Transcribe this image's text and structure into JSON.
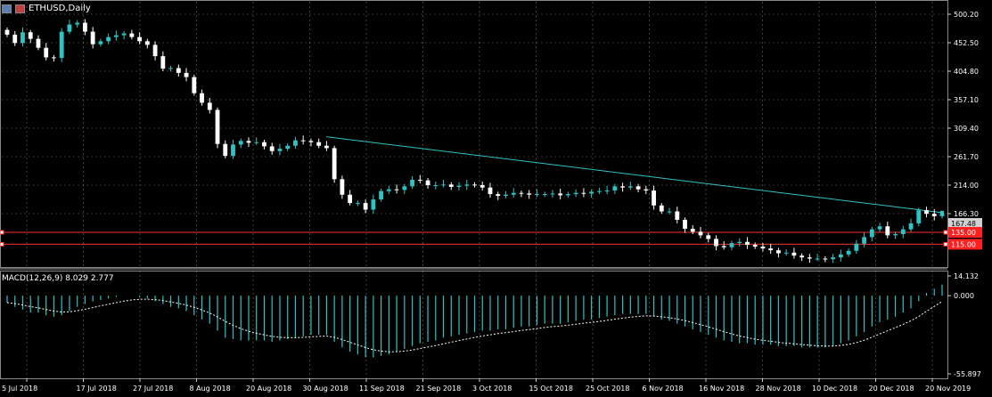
{
  "header": {
    "symbol_title": "ETHUSD,Daily",
    "icons": [
      "chart-window-icon",
      "flag-icon"
    ]
  },
  "macd": {
    "label": "MACD(12,26,9) 8.029 2.777"
  },
  "colors": {
    "background": "#000000",
    "grid": "#c0c0c0",
    "bull_candle": "#2ec4c4",
    "bear_candle": "#ffffff",
    "trendline": "#2ec4c4",
    "support_line": "#ff3030",
    "macd_hist": "#2ec4c4",
    "macd_signal": "#ffffff"
  },
  "chart_data": [
    {
      "type": "candlestick",
      "title": "ETHUSD,Daily",
      "y_ticks": [
        "500.20",
        "452.50",
        "404.80",
        "357.10",
        "309.40",
        "261.70",
        "214.00",
        "166.30"
      ],
      "ylim": [
        115.0,
        500.2
      ],
      "x_ticks": [
        "5 Jul 2018",
        "17 Jul 2018",
        "27 Jul 2018",
        "8 Aug 2018",
        "20 Aug 2018",
        "30 Aug 2018",
        "11 Sep 2018",
        "21 Sep 2018",
        "3 Oct 2018",
        "15 Oct 2018",
        "25 Oct 2018",
        "6 Nov 2018",
        "16 Nov 2018",
        "28 Nov 2018",
        "10 Dec 2018",
        "20 Dec 2018",
        "20 Nov 2019"
      ],
      "price_tags": [
        {
          "label": "167.48",
          "role": "current_price"
        },
        {
          "label": "135.00",
          "role": "horizontal_level"
        },
        {
          "label": "115.00",
          "role": "horizontal_level"
        }
      ],
      "horizontal_levels": [
        135.0,
        115.0
      ],
      "trendline": {
        "from": {
          "date": "30 Aug 2018",
          "price": 295
        },
        "to": {
          "date": "20 Nov 2019",
          "price": 168
        }
      },
      "closes": [
        466,
        452,
        470,
        459,
        444,
        428,
        427,
        471,
        483,
        486,
        471,
        450,
        455,
        462,
        465,
        468,
        462,
        455,
        449,
        430,
        409,
        410,
        402,
        395,
        368,
        352,
        340,
        283,
        263,
        282,
        288,
        285,
        286,
        279,
        271,
        275,
        280,
        289,
        288,
        286,
        280,
        276,
        224,
        198,
        184,
        184,
        173,
        190,
        204,
        207,
        206,
        212,
        223,
        222,
        214,
        214,
        215,
        211,
        213,
        215,
        214,
        210,
        199,
        196,
        198,
        201,
        200,
        198,
        199,
        199,
        200,
        197,
        199,
        201,
        200,
        203,
        204,
        205,
        212,
        210,
        212,
        207,
        205,
        180,
        170,
        170,
        156,
        141,
        136,
        130,
        124,
        112,
        110,
        117,
        119,
        114,
        111,
        108,
        105,
        100,
        101,
        96,
        93,
        91,
        91,
        90,
        93,
        98,
        104,
        116,
        127,
        140,
        145,
        130,
        132,
        140,
        150,
        172,
        166,
        162,
        167
      ]
    },
    {
      "type": "macd",
      "title": "MACD(12,26,9) 8.029 2.777",
      "y_ticks": [
        "14.132",
        "0.000",
        "-55.897"
      ],
      "ylim": [
        -55.897,
        14.132
      ],
      "histogram": [
        -5,
        -8,
        -10,
        -12,
        -12,
        -14,
        -15,
        -14,
        -11,
        -8,
        -6,
        -4,
        -3,
        -2,
        -1,
        0,
        0,
        -1,
        -2,
        -4,
        -6,
        -8,
        -9,
        -11,
        -14,
        -17,
        -20,
        -25,
        -30,
        -31,
        -32,
        -32,
        -32,
        -32,
        -33,
        -32,
        -31,
        -30,
        -29,
        -28,
        -28,
        -28,
        -33,
        -37,
        -40,
        -42,
        -44,
        -44,
        -43,
        -42,
        -40,
        -38,
        -36,
        -34,
        -33,
        -32,
        -30,
        -29,
        -28,
        -27,
        -26,
        -25,
        -25,
        -24,
        -24,
        -23,
        -22,
        -22,
        -21,
        -20,
        -20,
        -20,
        -19,
        -18,
        -17,
        -17,
        -16,
        -15,
        -14,
        -13,
        -13,
        -13,
        -13,
        -15,
        -17,
        -18,
        -20,
        -22,
        -24,
        -26,
        -28,
        -30,
        -32,
        -33,
        -34,
        -34,
        -35,
        -35,
        -35,
        -36,
        -36,
        -36,
        -37,
        -37,
        -37,
        -37,
        -36,
        -34,
        -32,
        -29,
        -26,
        -22,
        -19,
        -17,
        -15,
        -12,
        -9,
        -4,
        2,
        5,
        8
      ]
    }
  ]
}
